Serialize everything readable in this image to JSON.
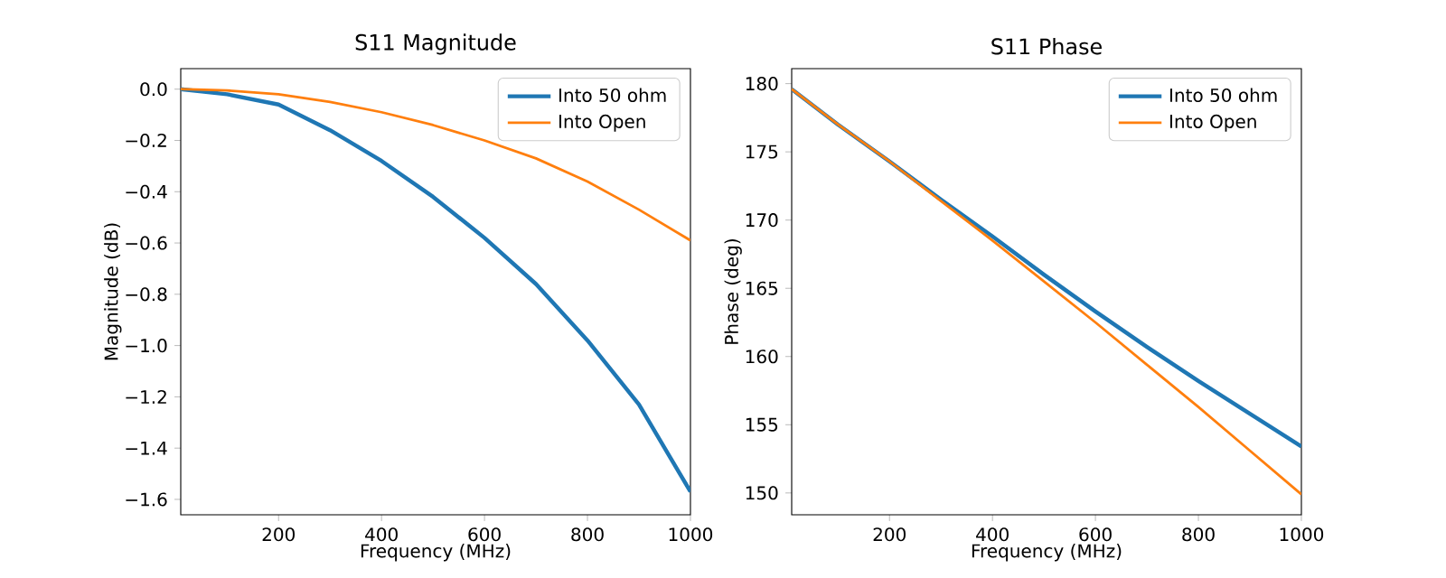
{
  "chart_data": [
    {
      "type": "line",
      "title": "S11 Magnitude",
      "xlabel": "Frequency (MHz)",
      "ylabel": "Magnitude (dB)",
      "x": [
        10,
        100,
        200,
        300,
        400,
        500,
        600,
        700,
        800,
        900,
        1000
      ],
      "series": [
        {
          "name": "Into 50 ohm",
          "color": "#1f77b4",
          "values": [
            0.0,
            -0.02,
            -0.06,
            -0.16,
            -0.28,
            -0.42,
            -0.58,
            -0.76,
            -0.98,
            -1.23,
            -1.57
          ]
        },
        {
          "name": "Into Open",
          "color": "#ff7f0e",
          "values": [
            0.0,
            -0.005,
            -0.02,
            -0.05,
            -0.09,
            -0.14,
            -0.2,
            -0.27,
            -0.36,
            -0.47,
            -0.59
          ]
        }
      ],
      "xlim": [
        10,
        1000
      ],
      "ylim": [
        -1.66,
        0.08
      ],
      "xticks": [
        200,
        400,
        600,
        800,
        1000
      ],
      "yticks": [
        {
          "value": -1.6,
          "label": "−1.6"
        },
        {
          "value": -1.4,
          "label": "−1.4"
        },
        {
          "value": -1.2,
          "label": "−1.2"
        },
        {
          "value": -1.0,
          "label": "−1.0"
        },
        {
          "value": -0.8,
          "label": "−0.8"
        },
        {
          "value": -0.6,
          "label": "−0.6"
        },
        {
          "value": -0.4,
          "label": "−0.4"
        },
        {
          "value": -0.2,
          "label": "−0.2"
        },
        {
          "value": 0.0,
          "label": "0.0"
        }
      ],
      "legend": "top right",
      "grid": false
    },
    {
      "type": "line",
      "title": "S11 Phase",
      "xlabel": "Frequency (MHz)",
      "ylabel": "Phase (deg)",
      "x": [
        10,
        100,
        200,
        300,
        400,
        500,
        600,
        700,
        800,
        900,
        1000
      ],
      "series": [
        {
          "name": "Into 50 ohm",
          "color": "#1f77b4",
          "values": [
            179.6,
            177.0,
            174.3,
            171.5,
            168.8,
            166.0,
            163.3,
            160.7,
            158.2,
            155.8,
            153.4
          ]
        },
        {
          "name": "Into Open",
          "color": "#ff7f0e",
          "values": [
            179.6,
            177.0,
            174.3,
            171.4,
            168.5,
            165.5,
            162.5,
            159.4,
            156.3,
            153.1,
            149.9
          ]
        }
      ],
      "xlim": [
        10,
        1000
      ],
      "ylim": [
        148.4,
        181.1
      ],
      "xticks": [
        200,
        400,
        600,
        800,
        1000
      ],
      "yticks": [
        150,
        155,
        160,
        165,
        170,
        175,
        180
      ],
      "legend": "top right",
      "grid": false
    }
  ]
}
